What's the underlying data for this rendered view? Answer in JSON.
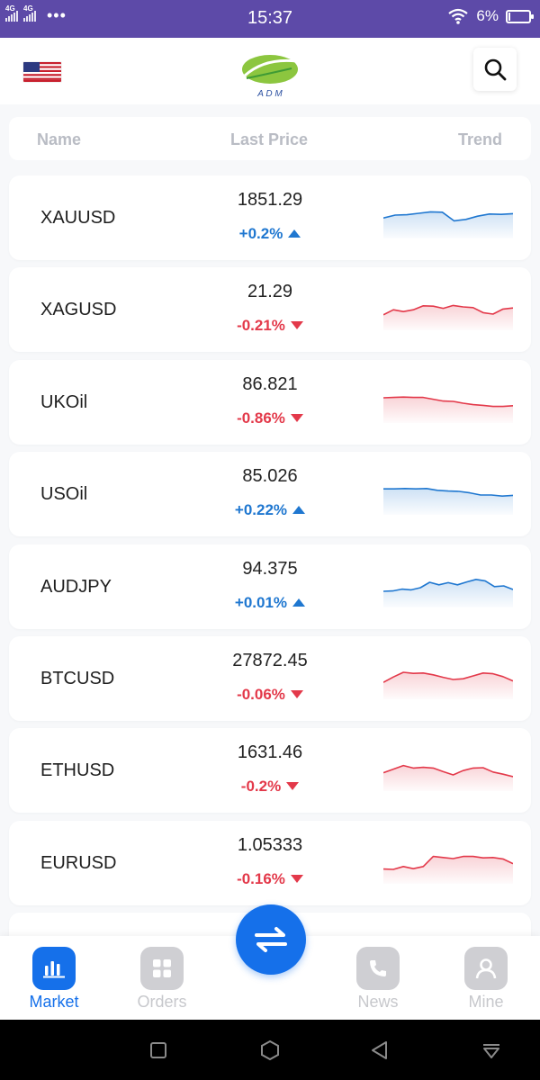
{
  "status_bar": {
    "sim1": "4G",
    "sim2": "4G",
    "more": "•••",
    "time": "15:37",
    "battery": "6%",
    "battery_level": 0.06
  },
  "header": {
    "flag_icon": "us-flag",
    "logo_text": "A D M",
    "search_icon": "search-icon"
  },
  "columns": {
    "name": "Name",
    "last_price": "Last Price",
    "trend": "Trend"
  },
  "colors": {
    "up": "#1f77d0",
    "down": "#e3394a",
    "accent": "#1570ea",
    "status_bar": "#5d4aa8"
  },
  "rows": [
    {
      "symbol": "XAUUSD",
      "price": "1851.29",
      "change": "+0.2%",
      "direction": "up",
      "trend": [
        52,
        60,
        61,
        65,
        69,
        68,
        44,
        48,
        57,
        63,
        62,
        64
      ]
    },
    {
      "symbol": "XAGUSD",
      "price": "21.29",
      "change": "-0.21%",
      "direction": "down",
      "trend": [
        38,
        52,
        47,
        52,
        63,
        62,
        56,
        64,
        60,
        58,
        44,
        40,
        54,
        57
      ]
    },
    {
      "symbol": "UKOil",
      "price": "86.821",
      "change": "-0.86%",
      "direction": "down",
      "trend": [
        65,
        66,
        67,
        66,
        66,
        61,
        56,
        55,
        50,
        46,
        44,
        41,
        41,
        43
      ]
    },
    {
      "symbol": "USOil",
      "price": "85.026",
      "change": "+0.22%",
      "direction": "up",
      "trend": [
        67,
        67,
        68,
        67,
        68,
        63,
        61,
        60,
        56,
        50,
        50,
        47,
        49
      ]
    },
    {
      "symbol": "AUDJPY",
      "price": "94.375",
      "change": "+0.01%",
      "direction": "up",
      "trend": [
        40,
        41,
        46,
        44,
        50,
        65,
        58,
        64,
        58,
        66,
        73,
        69,
        53,
        55,
        45
      ]
    },
    {
      "symbol": "BTCUSD",
      "price": "27872.45",
      "change": "-0.06%",
      "direction": "down",
      "trend": [
        42,
        57,
        70,
        67,
        68,
        63,
        56,
        50,
        52,
        60,
        68,
        66,
        58,
        46
      ]
    },
    {
      "symbol": "ETHUSD",
      "price": "1631.46",
      "change": "-0.2%",
      "direction": "down",
      "trend": [
        46,
        56,
        66,
        59,
        61,
        59,
        49,
        40,
        52,
        59,
        60,
        48,
        42,
        35
      ]
    },
    {
      "symbol": "EURUSD",
      "price": "1.05333",
      "change": "-0.16%",
      "direction": "down",
      "trend": [
        36,
        35,
        43,
        37,
        43,
        71,
        68,
        65,
        71,
        71,
        67,
        68,
        64,
        51
      ]
    }
  ],
  "partial_row_hint": ",",
  "bottom_nav": {
    "items": [
      {
        "label": "Market",
        "icon": "bar-chart-icon",
        "active": true
      },
      {
        "label": "Orders",
        "icon": "grid-icon",
        "active": false
      },
      {
        "label": "News",
        "icon": "phone-icon",
        "active": false
      },
      {
        "label": "Mine",
        "icon": "user-icon",
        "active": false
      }
    ],
    "center_icon": "swap-icon"
  },
  "system_nav": [
    "square-icon",
    "hexagon-icon",
    "back-triangle-icon",
    "menu-down-icon"
  ]
}
